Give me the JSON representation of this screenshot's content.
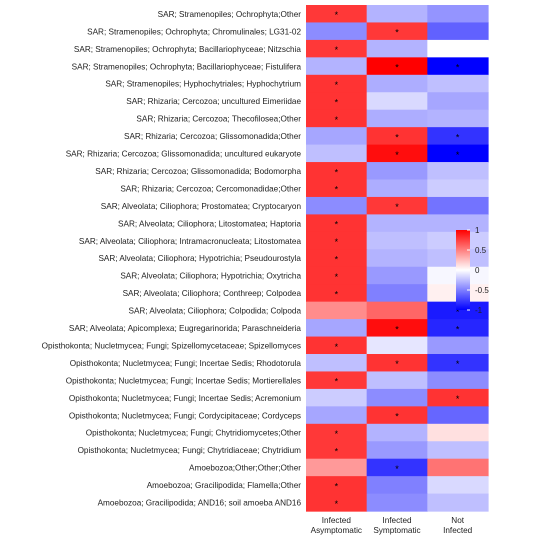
{
  "chart_data": {
    "type": "heatmap",
    "title": "",
    "xlabel": "",
    "ylabel": "",
    "columns": [
      "Infected\nAsymptomatic",
      "Infected\nSymptomatic",
      "Not\nInfected"
    ],
    "rows": [
      "SAR; Stramenopiles; Ochrophyta;Other",
      "SAR; Stramenopiles; Ochrophyta; Chromulinales; LG31-02",
      "SAR; Stramenopiles; Ochrophyta; Bacillariophyceae; Nitzschia",
      "SAR; Stramenopiles; Ochrophyta; Bacillariophyceae; Fistulifera",
      "SAR; Stramenopiles; Hyphochytriales; Hyphochytrium",
      "SAR; Rhizaria; Cercozoa; uncultured Eimeriidae",
      "SAR; Rhizaria; Cercozoa; Thecofilosea;Other",
      "SAR; Rhizaria; Cercozoa; Glissomonadida;Other",
      "SAR; Rhizaria; Cercozoa; Glissomonadida; uncultured eukaryote",
      "SAR; Rhizaria; Cercozoa; Glissomonadida; Bodomorpha",
      "SAR; Rhizaria; Cercozoa; Cercomonadidae;Other",
      "SAR; Alveolata; Ciliophora; Prostomatea; Cryptocaryon",
      "SAR; Alveolata; Ciliophora; Litostomatea; Haptoria",
      "SAR; Alveolata; Ciliophora; Intramacronucleata; Litostomatea",
      "SAR; Alveolata; Ciliophora; Hypotrichia; Pseudourostyla",
      "SAR; Alveolata; Ciliophora; Hypotrichia; Oxytricha",
      "SAR; Alveolata; Ciliophora; Conthreep; Colpodea",
      "SAR; Alveolata; Ciliophora; Colpodida; Colpoda",
      "SAR; Alveolata; Apicomplexa; Eugregarinorida; Paraschneideria",
      "Opisthokonta; Nucletmycea; Fungi; Spizellomycetaceae; Spizellomyces",
      "Opisthokonta; Nucletmycea; Fungi; Incertae Sedis; Rhodotorula",
      "Opisthokonta; Nucletmycea; Fungi; Incertae Sedis; Mortierellales",
      "Opisthokonta; Nucletmycea; Fungi; Incertae Sedis; Acremonium",
      "Opisthokonta; Nucletmycea; Fungi; Cordycipitaceae; Cordyceps",
      "Opisthokonta; Nucletmycea; Fungi; Chytridiomycetes;Other",
      "Opisthokonta; Nucletmycea; Fungi; Chytridiaceae; Chytridium",
      "Amoebozoa;Other;Other;Other",
      "Amoebozoa; Gracilipodida; Flamella;Other",
      "Amoebozoa; Gracilipodida; AND16; soil amoeba AND16"
    ],
    "values": [
      [
        0.78,
        -0.3,
        -0.42
      ],
      [
        -0.45,
        0.78,
        -0.62
      ],
      [
        0.78,
        -0.3,
        0.0
      ],
      [
        -0.3,
        1.0,
        -1.0
      ],
      [
        0.8,
        -0.32,
        -0.25
      ],
      [
        0.8,
        -0.15,
        -0.35
      ],
      [
        0.8,
        -0.32,
        -0.3
      ],
      [
        -0.35,
        0.8,
        -0.8
      ],
      [
        -0.25,
        0.95,
        -1.0
      ],
      [
        0.8,
        -0.4,
        -0.25
      ],
      [
        0.8,
        -0.32,
        -0.2
      ],
      [
        -0.45,
        0.78,
        -0.55
      ],
      [
        0.8,
        -0.3,
        -0.3
      ],
      [
        0.8,
        -0.25,
        -0.2
      ],
      [
        0.8,
        -0.3,
        -0.25
      ],
      [
        0.8,
        -0.4,
        -0.03
      ],
      [
        0.8,
        -0.5,
        0.06
      ],
      [
        0.45,
        0.6,
        -0.9
      ],
      [
        -0.35,
        0.95,
        -0.85
      ],
      [
        0.8,
        -0.1,
        -0.4
      ],
      [
        -0.25,
        0.8,
        -0.8
      ],
      [
        0.78,
        -0.25,
        -0.45
      ],
      [
        -0.2,
        -0.45,
        0.8
      ],
      [
        -0.35,
        0.8,
        -0.6
      ],
      [
        0.78,
        -0.3,
        0.12
      ],
      [
        0.78,
        -0.4,
        -0.25
      ],
      [
        0.4,
        -0.8,
        0.55
      ],
      [
        0.8,
        -0.5,
        -0.15
      ],
      [
        0.8,
        -0.45,
        -0.25
      ]
    ],
    "significant": [
      [
        true,
        false,
        false
      ],
      [
        false,
        true,
        false
      ],
      [
        true,
        false,
        false
      ],
      [
        false,
        true,
        true
      ],
      [
        true,
        false,
        false
      ],
      [
        true,
        false,
        false
      ],
      [
        true,
        false,
        false
      ],
      [
        false,
        true,
        true
      ],
      [
        false,
        true,
        true
      ],
      [
        true,
        false,
        false
      ],
      [
        true,
        false,
        false
      ],
      [
        false,
        true,
        false
      ],
      [
        true,
        false,
        false
      ],
      [
        true,
        false,
        false
      ],
      [
        true,
        false,
        false
      ],
      [
        true,
        false,
        false
      ],
      [
        true,
        false,
        false
      ],
      [
        false,
        false,
        true
      ],
      [
        false,
        true,
        true
      ],
      [
        true,
        false,
        false
      ],
      [
        false,
        true,
        true
      ],
      [
        true,
        false,
        false
      ],
      [
        false,
        false,
        true
      ],
      [
        false,
        true,
        false
      ],
      [
        true,
        false,
        false
      ],
      [
        true,
        false,
        false
      ],
      [
        false,
        true,
        false
      ],
      [
        true,
        false,
        false
      ],
      [
        true,
        false,
        false
      ]
    ],
    "significance_marker": "*",
    "color_scale": {
      "min": -1,
      "max": 1,
      "low_color": "#0000ff",
      "mid_color": "#ffffff",
      "high_color": "#ff0000",
      "ticks": [
        1,
        0.5,
        0,
        -0.5,
        -1
      ],
      "tick_labels": [
        "1",
        "0.5",
        "0",
        "-0.5",
        "-1"
      ]
    },
    "legend_position": "right",
    "grid": false
  }
}
